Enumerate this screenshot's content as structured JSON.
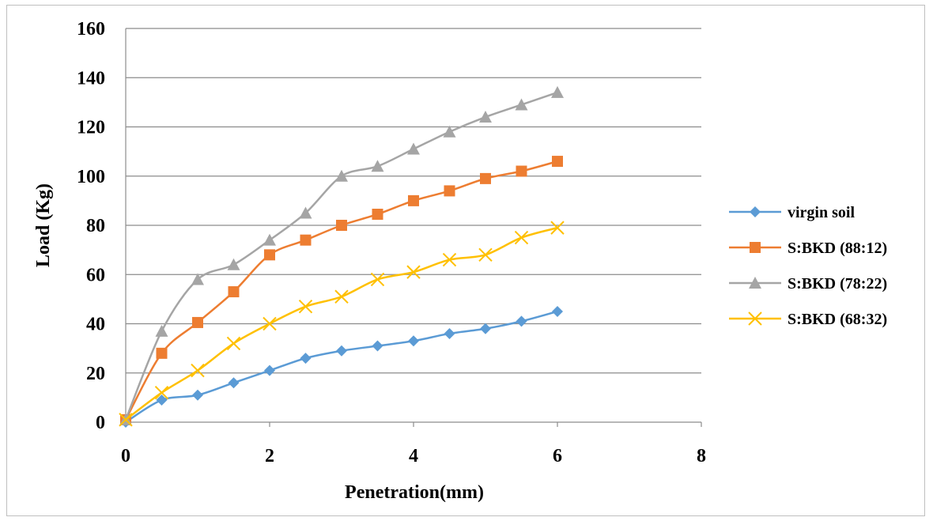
{
  "chart_data": {
    "type": "line",
    "title": "",
    "xlabel": "Penetration(mm)",
    "ylabel": "Load (Kg)",
    "xlim": [
      0,
      8
    ],
    "ylim": [
      0,
      160
    ],
    "xticks": [
      0,
      2,
      4,
      6,
      8
    ],
    "yticks": [
      0,
      20,
      40,
      60,
      80,
      100,
      120,
      140,
      160
    ],
    "grid": "horizontal",
    "legend_position": "right",
    "x": [
      0,
      0.5,
      1,
      1.5,
      2,
      2.5,
      3,
      3.5,
      4,
      4.5,
      5,
      5.5,
      6
    ],
    "series": [
      {
        "name": "virgin soil",
        "color": "#5b9bd5",
        "marker": "diamond",
        "values": [
          0,
          9,
          11,
          16,
          21,
          26,
          29,
          31,
          33,
          36,
          38,
          41,
          45
        ]
      },
      {
        "name": "S:BKD (88:12)",
        "color": "#ed7d31",
        "marker": "square",
        "values": [
          1,
          28,
          40.5,
          53,
          68,
          74,
          80,
          84.5,
          90,
          94,
          99,
          102,
          106
        ]
      },
      {
        "name": "S:BKD (78:22)",
        "color": "#a5a5a5",
        "marker": "triangle",
        "values": [
          1,
          37,
          58,
          64,
          74,
          85,
          100,
          104,
          111,
          118,
          124,
          129,
          134
        ]
      },
      {
        "name": "S:BKD (68:32)",
        "color": "#ffc000",
        "marker": "x",
        "values": [
          1,
          12,
          21,
          32,
          40,
          47,
          51,
          58,
          61,
          66,
          68,
          75,
          79
        ]
      }
    ]
  }
}
